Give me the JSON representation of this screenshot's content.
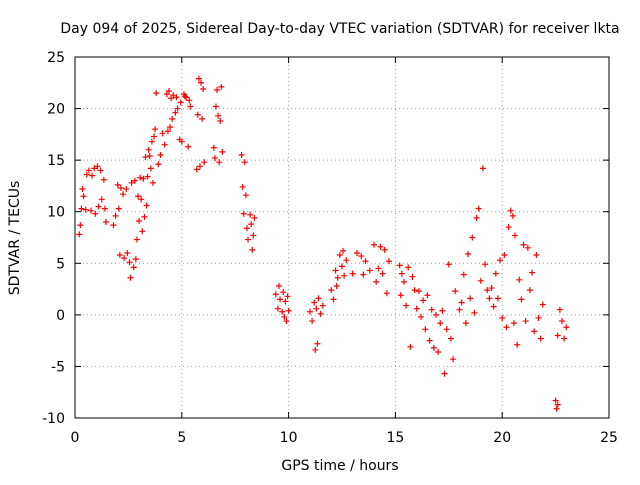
{
  "chart_data": {
    "type": "scatter",
    "title": "Day 094 of 2025, Sidereal Day-to-day VTEC variation (SDTVAR) for receiver lkta",
    "xlabel": "GPS time / hours",
    "ylabel": "SDTVAR / TECUs",
    "xlim": [
      0,
      25
    ],
    "ylim": [
      -10,
      25
    ],
    "x_ticks": [
      0,
      5,
      10,
      15,
      20,
      25
    ],
    "y_ticks": [
      -10,
      -5,
      0,
      5,
      10,
      15,
      20,
      25
    ],
    "x_tick_labels": [
      "0",
      "5",
      "10",
      "15",
      "20",
      "25"
    ],
    "y_tick_labels": [
      "-10",
      "-5",
      "0",
      "5",
      "10",
      "15",
      "20",
      "25"
    ],
    "grid": true,
    "legend": "none",
    "marker": "+",
    "series_color": "#ff0000",
    "series": [
      {
        "name": "SDTVAR",
        "points": [
          [
            0.2,
            7.8
          ],
          [
            0.25,
            8.7
          ],
          [
            0.3,
            10.3
          ],
          [
            0.35,
            12.2
          ],
          [
            0.4,
            11.5
          ],
          [
            0.5,
            10.2
          ],
          [
            0.55,
            13.6
          ],
          [
            0.65,
            14.0
          ],
          [
            0.75,
            10.1
          ],
          [
            0.8,
            13.5
          ],
          [
            0.9,
            14.2
          ],
          [
            0.95,
            9.8
          ],
          [
            1.05,
            14.4
          ],
          [
            1.1,
            10.5
          ],
          [
            1.2,
            14.0
          ],
          [
            1.25,
            11.2
          ],
          [
            1.35,
            13.1
          ],
          [
            1.4,
            10.3
          ],
          [
            1.45,
            9.0
          ],
          [
            1.8,
            8.7
          ],
          [
            1.9,
            9.6
          ],
          [
            2.0,
            12.6
          ],
          [
            2.05,
            10.3
          ],
          [
            2.1,
            5.8
          ],
          [
            2.15,
            12.3
          ],
          [
            2.25,
            11.7
          ],
          [
            2.3,
            5.5
          ],
          [
            2.4,
            12.2
          ],
          [
            2.45,
            6.0
          ],
          [
            2.55,
            5.1
          ],
          [
            2.6,
            3.6
          ],
          [
            2.65,
            12.8
          ],
          [
            2.75,
            4.6
          ],
          [
            2.8,
            13.0
          ],
          [
            2.85,
            5.4
          ],
          [
            2.9,
            7.3
          ],
          [
            2.95,
            11.5
          ],
          [
            3.0,
            9.1
          ],
          [
            3.05,
            13.3
          ],
          [
            3.1,
            11.2
          ],
          [
            3.15,
            8.1
          ],
          [
            3.2,
            13.2
          ],
          [
            3.25,
            9.5
          ],
          [
            3.3,
            15.3
          ],
          [
            3.35,
            10.6
          ],
          [
            3.4,
            13.4
          ],
          [
            3.45,
            16.0
          ],
          [
            3.5,
            15.4
          ],
          [
            3.55,
            14.2
          ],
          [
            3.6,
            16.8
          ],
          [
            3.65,
            12.8
          ],
          [
            3.7,
            17.3
          ],
          [
            3.75,
            18.0
          ],
          [
            3.8,
            21.5
          ],
          [
            3.9,
            14.6
          ],
          [
            4.0,
            15.5
          ],
          [
            4.1,
            17.6
          ],
          [
            4.2,
            16.5
          ],
          [
            4.3,
            21.4
          ],
          [
            4.35,
            17.8
          ],
          [
            4.4,
            21.7
          ],
          [
            4.45,
            18.2
          ],
          [
            4.5,
            21.0
          ],
          [
            4.55,
            19.0
          ],
          [
            4.6,
            21.3
          ],
          [
            4.7,
            19.6
          ],
          [
            4.75,
            21.1
          ],
          [
            4.8,
            20.0
          ],
          [
            4.9,
            17.0
          ],
          [
            4.95,
            20.6
          ],
          [
            5.0,
            16.8
          ],
          [
            5.1,
            21.4
          ],
          [
            5.15,
            21.2
          ],
          [
            5.2,
            21.1
          ],
          [
            5.3,
            16.3
          ],
          [
            5.35,
            20.8
          ],
          [
            5.4,
            20.2
          ],
          [
            5.7,
            14.1
          ],
          [
            5.75,
            19.4
          ],
          [
            5.8,
            22.9
          ],
          [
            5.85,
            14.4
          ],
          [
            5.9,
            22.5
          ],
          [
            5.95,
            19.0
          ],
          [
            6.0,
            21.9
          ],
          [
            6.05,
            14.8
          ],
          [
            6.5,
            16.2
          ],
          [
            6.55,
            15.2
          ],
          [
            6.6,
            20.2
          ],
          [
            6.65,
            21.8
          ],
          [
            6.7,
            19.3
          ],
          [
            6.75,
            14.8
          ],
          [
            6.8,
            18.8
          ],
          [
            6.85,
            22.1
          ],
          [
            6.9,
            15.8
          ],
          [
            7.8,
            15.5
          ],
          [
            7.85,
            12.4
          ],
          [
            7.9,
            9.8
          ],
          [
            7.95,
            14.8
          ],
          [
            8.0,
            11.6
          ],
          [
            8.05,
            8.4
          ],
          [
            8.1,
            7.3
          ],
          [
            8.2,
            9.7
          ],
          [
            8.25,
            8.8
          ],
          [
            8.3,
            6.3
          ],
          [
            8.35,
            7.7
          ],
          [
            8.4,
            9.4
          ],
          [
            9.4,
            2.0
          ],
          [
            9.5,
            0.6
          ],
          [
            9.55,
            2.8
          ],
          [
            9.6,
            1.5
          ],
          [
            9.7,
            0.3
          ],
          [
            9.75,
            2.2
          ],
          [
            9.8,
            -0.2
          ],
          [
            9.85,
            1.3
          ],
          [
            9.9,
            -0.6
          ],
          [
            9.95,
            1.8
          ],
          [
            10.0,
            0.4
          ],
          [
            11.0,
            0.3
          ],
          [
            11.1,
            -0.6
          ],
          [
            11.2,
            1.2
          ],
          [
            11.25,
            -3.4
          ],
          [
            11.3,
            0.6
          ],
          [
            11.35,
            -2.8
          ],
          [
            11.4,
            1.6
          ],
          [
            11.5,
            0.1
          ],
          [
            11.6,
            0.9
          ],
          [
            12.0,
            2.4
          ],
          [
            12.1,
            1.5
          ],
          [
            12.2,
            4.3
          ],
          [
            12.25,
            2.8
          ],
          [
            12.3,
            3.6
          ],
          [
            12.4,
            5.8
          ],
          [
            12.5,
            4.7
          ],
          [
            12.55,
            6.2
          ],
          [
            12.6,
            3.8
          ],
          [
            12.7,
            5.3
          ],
          [
            13.0,
            4.0
          ],
          [
            13.2,
            6.0
          ],
          [
            13.4,
            5.7
          ],
          [
            13.5,
            3.9
          ],
          [
            13.6,
            5.2
          ],
          [
            13.8,
            4.3
          ],
          [
            14.0,
            6.8
          ],
          [
            14.1,
            3.2
          ],
          [
            14.2,
            4.5
          ],
          [
            14.3,
            6.6
          ],
          [
            14.4,
            4.0
          ],
          [
            14.5,
            6.3
          ],
          [
            14.6,
            2.1
          ],
          [
            14.7,
            5.2
          ],
          [
            15.2,
            4.8
          ],
          [
            15.25,
            1.9
          ],
          [
            15.3,
            4.0
          ],
          [
            15.4,
            3.2
          ],
          [
            15.5,
            0.9
          ],
          [
            15.6,
            4.6
          ],
          [
            15.7,
            -3.1
          ],
          [
            15.8,
            3.7
          ],
          [
            15.9,
            2.4
          ],
          [
            16.0,
            0.6
          ],
          [
            16.1,
            2.3
          ],
          [
            16.2,
            -0.2
          ],
          [
            16.3,
            1.4
          ],
          [
            16.4,
            -1.4
          ],
          [
            16.5,
            1.9
          ],
          [
            16.6,
            -2.5
          ],
          [
            16.7,
            0.5
          ],
          [
            16.8,
            -3.2
          ],
          [
            16.9,
            0.0
          ],
          [
            17.0,
            -3.6
          ],
          [
            17.1,
            -0.8
          ],
          [
            17.2,
            0.4
          ],
          [
            17.3,
            -5.7
          ],
          [
            17.4,
            -1.4
          ],
          [
            17.5,
            4.9
          ],
          [
            17.6,
            -2.3
          ],
          [
            17.7,
            -4.3
          ],
          [
            17.8,
            2.3
          ],
          [
            18.0,
            0.5
          ],
          [
            18.1,
            1.2
          ],
          [
            18.2,
            3.9
          ],
          [
            18.3,
            -0.8
          ],
          [
            18.4,
            5.9
          ],
          [
            18.5,
            1.6
          ],
          [
            18.6,
            7.5
          ],
          [
            18.7,
            0.2
          ],
          [
            18.8,
            9.4
          ],
          [
            18.9,
            10.3
          ],
          [
            19.0,
            3.3
          ],
          [
            19.1,
            14.2
          ],
          [
            19.2,
            4.9
          ],
          [
            19.3,
            2.4
          ],
          [
            19.4,
            1.6
          ],
          [
            19.5,
            2.6
          ],
          [
            19.6,
            0.8
          ],
          [
            19.7,
            4.0
          ],
          [
            19.8,
            1.6
          ],
          [
            19.9,
            5.3
          ],
          [
            20.0,
            -0.3
          ],
          [
            20.1,
            5.8
          ],
          [
            20.2,
            -1.2
          ],
          [
            20.3,
            8.5
          ],
          [
            20.4,
            10.1
          ],
          [
            20.5,
            9.6
          ],
          [
            20.55,
            -0.8
          ],
          [
            20.6,
            7.7
          ],
          [
            20.7,
            -2.9
          ],
          [
            20.8,
            3.4
          ],
          [
            20.9,
            1.5
          ],
          [
            21.0,
            6.8
          ],
          [
            21.1,
            -0.6
          ],
          [
            21.2,
            6.5
          ],
          [
            21.3,
            2.4
          ],
          [
            21.4,
            4.1
          ],
          [
            21.5,
            -1.6
          ],
          [
            21.6,
            5.8
          ],
          [
            21.7,
            -0.3
          ],
          [
            21.8,
            -2.3
          ],
          [
            21.9,
            1.0
          ],
          [
            22.6,
            -2.0
          ],
          [
            22.7,
            0.5
          ],
          [
            22.8,
            -0.6
          ],
          [
            22.9,
            -2.3
          ],
          [
            23.0,
            -1.2
          ],
          [
            22.5,
            -8.3
          ],
          [
            22.55,
            -9.1
          ],
          [
            22.6,
            -8.7
          ]
        ]
      }
    ]
  }
}
